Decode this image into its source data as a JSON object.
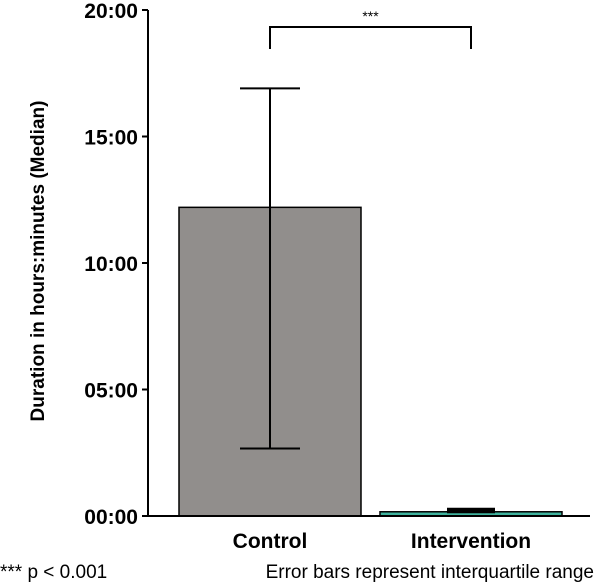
{
  "chart_data": {
    "type": "bar",
    "categories": [
      "Control",
      "Intervention"
    ],
    "values": [
      732,
      10
    ],
    "error_bars": {
      "lower": [
        160,
        10
      ],
      "upper": [
        1014,
        16
      ]
    },
    "bar_colors": [
      "#918e8c",
      "#3fb29d"
    ],
    "ylabel": "Duration in hours:minutes (Median)",
    "ylim": [
      0,
      1200
    ],
    "yticks": [
      0,
      300,
      600,
      900,
      1200
    ],
    "ytick_labels": [
      "00:00",
      "05:00",
      "10:00",
      "15:00",
      "20:00"
    ],
    "y_unit": "minutes",
    "grid": false,
    "significance": {
      "between": [
        "Control",
        "Intervention"
      ],
      "label": "***"
    }
  },
  "footnotes": {
    "significance": "*** p < 0.001",
    "error_bars": "Error bars represent interquartile range"
  }
}
